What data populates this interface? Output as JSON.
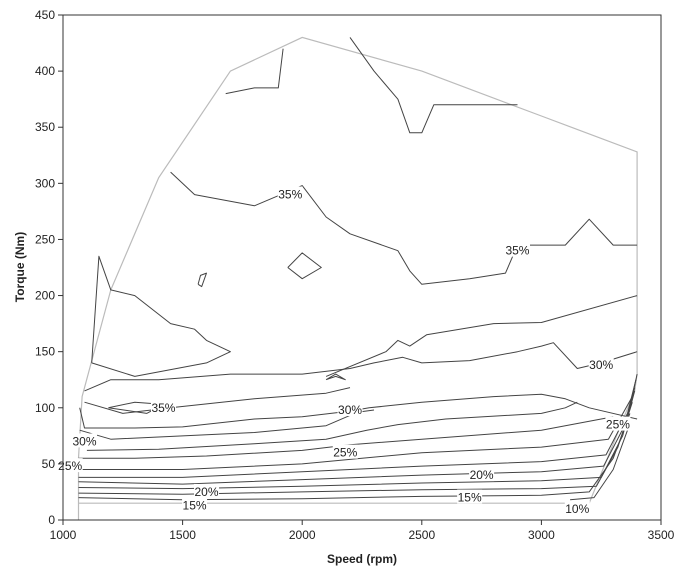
{
  "chart_data": {
    "type": "contour",
    "xlabel": "Speed (rpm)",
    "ylabel": "Torque (Nm)",
    "xlim": [
      1000,
      3500
    ],
    "ylim": [
      0,
      450
    ],
    "xticks": [
      "1000",
      "1500",
      "2000",
      "2500",
      "3000",
      "3500"
    ],
    "yticks": [
      "0",
      "50",
      "100",
      "150",
      "200",
      "250",
      "300",
      "350",
      "400",
      "450"
    ],
    "grid": false,
    "colors": {
      "contour": "#444444",
      "boundary": "#bbbbbb",
      "axis": "#333333"
    },
    "boundary": [
      [
        1065,
        0
      ],
      [
        1065,
        55
      ],
      [
        1080,
        110
      ],
      [
        1200,
        205
      ],
      [
        1400,
        305
      ],
      [
        1700,
        400
      ],
      [
        2000,
        430
      ],
      [
        2500,
        400
      ],
      [
        3000,
        360
      ],
      [
        3400,
        328
      ],
      [
        3400,
        130
      ],
      [
        3390,
        115
      ],
      [
        3200,
        15
      ],
      [
        1065,
        15
      ]
    ],
    "contours": [
      {
        "level": "10%",
        "points": [
          [
            3120,
            18
          ],
          [
            3220,
            20
          ],
          [
            3300,
            45
          ],
          [
            3360,
            80
          ]
        ]
      },
      {
        "level": "15%",
        "points": [
          [
            1065,
            20
          ],
          [
            1500,
            18
          ],
          [
            2000,
            19
          ],
          [
            2500,
            21
          ],
          [
            3000,
            22
          ],
          [
            3200,
            25
          ],
          [
            3300,
            55
          ],
          [
            3370,
            95
          ]
        ]
      },
      {
        "level": "",
        "points": [
          [
            1065,
            24
          ],
          [
            1500,
            23
          ],
          [
            2000,
            25
          ],
          [
            2500,
            27
          ],
          [
            3000,
            28
          ],
          [
            3230,
            30
          ],
          [
            3320,
            65
          ],
          [
            3380,
            105
          ]
        ]
      },
      {
        "level": "",
        "points": [
          [
            1065,
            29
          ],
          [
            1500,
            28
          ],
          [
            2000,
            30
          ],
          [
            2500,
            33
          ],
          [
            3000,
            35
          ],
          [
            3250,
            38
          ],
          [
            3340,
            75
          ],
          [
            3390,
            115
          ]
        ]
      },
      {
        "level": "20%",
        "points": [
          [
            1065,
            34
          ],
          [
            1500,
            32
          ],
          [
            2000,
            36
          ],
          [
            2500,
            40
          ],
          [
            3000,
            43
          ],
          [
            3260,
            48
          ],
          [
            3350,
            85
          ],
          [
            3390,
            118
          ]
        ]
      },
      {
        "level": "",
        "points": [
          [
            1065,
            38
          ],
          [
            1500,
            38
          ],
          [
            2000,
            43
          ],
          [
            2500,
            48
          ],
          [
            3000,
            52
          ],
          [
            3270,
            58
          ],
          [
            3360,
            95
          ],
          [
            3395,
            125
          ]
        ]
      },
      {
        "level": "",
        "points": [
          [
            1065,
            45
          ],
          [
            1500,
            45
          ],
          [
            2000,
            50
          ],
          [
            2250,
            55
          ],
          [
            2500,
            60
          ],
          [
            3000,
            65
          ],
          [
            3280,
            72
          ],
          [
            3380,
            110
          ],
          [
            3400,
            130
          ]
        ]
      },
      {
        "level": "25%",
        "points": [
          [
            1065,
            55
          ],
          [
            1300,
            55
          ],
          [
            1600,
            57
          ],
          [
            2000,
            62
          ],
          [
            2200,
            67
          ],
          [
            2500,
            72
          ],
          [
            3000,
            80
          ],
          [
            3300,
            92
          ]
        ]
      },
      {
        "level": "",
        "points": [
          [
            1100,
            62
          ],
          [
            1400,
            63
          ],
          [
            1800,
            68
          ],
          [
            2100,
            72
          ],
          [
            2270,
            80
          ],
          [
            2400,
            85
          ],
          [
            2600,
            90
          ],
          [
            3000,
            95
          ],
          [
            3100,
            100
          ],
          [
            3150,
            105
          ]
        ]
      },
      {
        "level": "",
        "points": [
          [
            1070,
            80
          ],
          [
            1200,
            72
          ],
          [
            1400,
            74
          ],
          [
            1800,
            78
          ],
          [
            2100,
            84
          ],
          [
            2230,
            96
          ],
          [
            2300,
            98
          ]
        ]
      },
      {
        "level": "30%",
        "points": [
          [
            1070,
            100
          ],
          [
            1090,
            82
          ],
          [
            1300,
            82
          ],
          [
            1500,
            83
          ],
          [
            1800,
            90
          ],
          [
            2000,
            92
          ],
          [
            2200,
            97
          ],
          [
            2280,
            100
          ],
          [
            2500,
            105
          ],
          [
            2800,
            110
          ],
          [
            3000,
            112
          ],
          [
            3100,
            108
          ],
          [
            3200,
            100
          ],
          [
            3400,
            90
          ]
        ]
      },
      {
        "level": "",
        "points": [
          [
            1090,
            105
          ],
          [
            1250,
            95
          ],
          [
            1450,
            100
          ],
          [
            1800,
            108
          ],
          [
            2100,
            113
          ],
          [
            2200,
            118
          ]
        ]
      },
      {
        "level": "35%",
        "points": [
          [
            1190,
            100
          ],
          [
            1350,
            95
          ],
          [
            1420,
            103
          ],
          [
            1300,
            105
          ],
          [
            1190,
            100
          ]
        ]
      },
      {
        "level": "30%",
        "points": [
          [
            1090,
            115
          ],
          [
            1200,
            125
          ],
          [
            1400,
            125
          ],
          [
            1700,
            130
          ],
          [
            2000,
            130
          ],
          [
            2200,
            135
          ],
          [
            2300,
            140
          ],
          [
            2420,
            145
          ],
          [
            2500,
            140
          ],
          [
            2700,
            142
          ],
          [
            2900,
            150
          ],
          [
            3000,
            155
          ],
          [
            3050,
            158
          ],
          [
            3150,
            135
          ],
          [
            3250,
            140
          ],
          [
            3400,
            150
          ]
        ]
      },
      {
        "level": "35%",
        "points": [
          [
            2100,
            128
          ],
          [
            2350,
            150
          ],
          [
            2400,
            160
          ],
          [
            2450,
            155
          ],
          [
            2520,
            165
          ],
          [
            2800,
            175
          ],
          [
            3000,
            176
          ],
          [
            3400,
            200
          ]
        ]
      },
      {
        "level": "",
        "points": [
          [
            2100,
            125
          ],
          [
            2140,
            128
          ],
          [
            2180,
            125
          ],
          [
            2140,
            130
          ],
          [
            2100,
            125
          ]
        ]
      },
      {
        "level": "35%",
        "points": [
          [
            1120,
            140
          ],
          [
            1150,
            235
          ],
          [
            1200,
            205
          ],
          [
            1300,
            200
          ],
          [
            1450,
            175
          ],
          [
            1550,
            170
          ],
          [
            1600,
            160
          ],
          [
            1700,
            150
          ],
          [
            1600,
            140
          ],
          [
            1300,
            128
          ],
          [
            1120,
            140
          ]
        ]
      },
      {
        "level": "35%",
        "points": [
          [
            1450,
            310
          ],
          [
            1550,
            290
          ],
          [
            1800,
            280
          ],
          [
            2000,
            298
          ],
          [
            2100,
            270
          ],
          [
            2200,
            255
          ],
          [
            2400,
            240
          ],
          [
            2450,
            222
          ],
          [
            2500,
            210
          ],
          [
            2700,
            215
          ],
          [
            2850,
            220
          ],
          [
            2900,
            245
          ],
          [
            3100,
            245
          ],
          [
            3200,
            268
          ],
          [
            3300,
            245
          ],
          [
            3400,
            245
          ]
        ]
      },
      {
        "level": "",
        "points": [
          [
            1565,
            210
          ],
          [
            1575,
            218
          ],
          [
            1600,
            220
          ],
          [
            1580,
            208
          ],
          [
            1565,
            210
          ]
        ]
      },
      {
        "level": "",
        "points": [
          [
            1940,
            225
          ],
          [
            2000,
            238
          ],
          [
            2080,
            225
          ],
          [
            2000,
            215
          ],
          [
            1940,
            225
          ]
        ]
      },
      {
        "level": "",
        "points": [
          [
            1680,
            380
          ],
          [
            1800,
            385
          ],
          [
            1900,
            385
          ],
          [
            1920,
            420
          ]
        ]
      },
      {
        "level": "",
        "points": [
          [
            2200,
            430
          ],
          [
            2300,
            400
          ],
          [
            2400,
            375
          ],
          [
            2450,
            345
          ],
          [
            2500,
            345
          ],
          [
            2550,
            370
          ],
          [
            2700,
            370
          ],
          [
            2900,
            370
          ]
        ]
      }
    ],
    "labels": [
      {
        "text": "35%",
        "x": 1950,
        "y": 290
      },
      {
        "text": "35%",
        "x": 2900,
        "y": 240
      },
      {
        "text": "30%",
        "x": 3250,
        "y": 138
      },
      {
        "text": "35%",
        "x": 1420,
        "y": 100
      },
      {
        "text": "30%",
        "x": 2200,
        "y": 98
      },
      {
        "text": "25%",
        "x": 3320,
        "y": 85
      },
      {
        "text": "30%",
        "x": 1090,
        "y": 70
      },
      {
        "text": "25%",
        "x": 2180,
        "y": 60
      },
      {
        "text": "25%",
        "x": 1030,
        "y": 48
      },
      {
        "text": "20%",
        "x": 2750,
        "y": 40
      },
      {
        "text": "20%",
        "x": 1600,
        "y": 25
      },
      {
        "text": "15%",
        "x": 2700,
        "y": 20
      },
      {
        "text": "15%",
        "x": 1550,
        "y": 13
      },
      {
        "text": "10%",
        "x": 3150,
        "y": 10
      }
    ]
  }
}
